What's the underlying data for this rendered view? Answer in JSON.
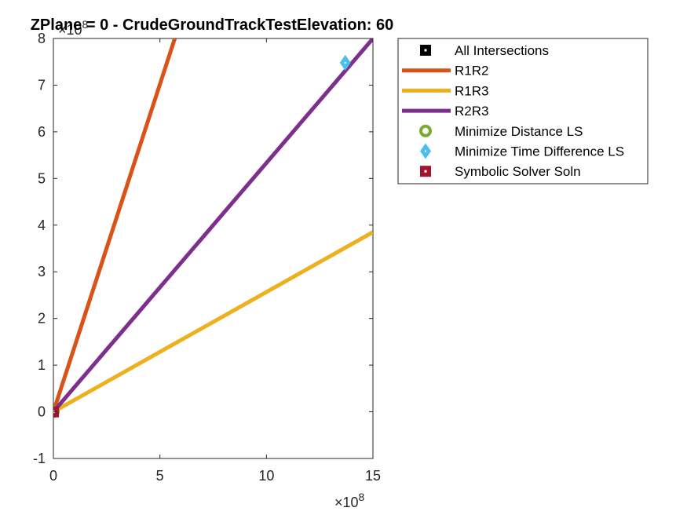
{
  "chart_data": {
    "type": "line",
    "title": "ZPlane = 0 - CrudeGroundTrackTestElevation: 60",
    "xlabel": "",
    "ylabel": "",
    "x_exponent": "×10",
    "x_exponent_power": "8",
    "y_exponent": "×10",
    "y_exponent_power": "8",
    "xlim": [
      0,
      15
    ],
    "ylim": [
      -1,
      8
    ],
    "xticks": [
      0,
      5,
      10,
      15
    ],
    "xtick_labels": [
      "0",
      "5",
      "10",
      "15"
    ],
    "yticks": [
      -1,
      0,
      1,
      2,
      3,
      4,
      5,
      6,
      7,
      8
    ],
    "ytick_labels": [
      "-1",
      "0",
      "1",
      "2",
      "3",
      "4",
      "5",
      "6",
      "7",
      "8"
    ],
    "grid": false,
    "legend_position": "outside-top-right",
    "series": [
      {
        "name": "All Intersections",
        "kind": "marker",
        "marker": "square-dot",
        "color": "#000000",
        "x": [
          0
        ],
        "y": [
          0
        ]
      },
      {
        "name": "R1R2",
        "kind": "line",
        "color": "#D95319",
        "x": [
          0,
          5.7
        ],
        "y": [
          0,
          8
        ]
      },
      {
        "name": "R1R3",
        "kind": "line",
        "color": "#EDB120",
        "x": [
          0,
          15
        ],
        "y": [
          0,
          3.85
        ]
      },
      {
        "name": "R2R3",
        "kind": "line",
        "color": "#7E2F8E",
        "x": [
          0,
          15
        ],
        "y": [
          0,
          8
        ]
      },
      {
        "name": "Minimize Distance LS",
        "kind": "marker",
        "marker": "circle-dot",
        "color": "#77AC30",
        "x": [
          0
        ],
        "y": [
          0
        ]
      },
      {
        "name": "Minimize Time Difference LS",
        "kind": "marker",
        "marker": "diamond-dot",
        "color": "#4DBEEE",
        "x": [
          13.7
        ],
        "y": [
          7.48
        ]
      },
      {
        "name": "Symbolic Solver Soln",
        "kind": "marker",
        "marker": "square-dot",
        "color": "#A2142F",
        "x": [
          0
        ],
        "y": [
          0
        ]
      }
    ]
  }
}
